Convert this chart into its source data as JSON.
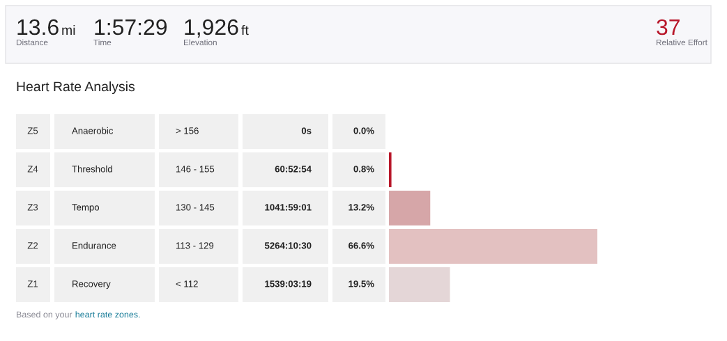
{
  "chart_data": {
    "type": "bar",
    "orientation": "horizontal",
    "title": "Heart Rate Analysis",
    "categories": [
      "Z5",
      "Z4",
      "Z3",
      "Z2",
      "Z1"
    ],
    "values": [
      0.0,
      0.8,
      13.2,
      66.6,
      19.5
    ],
    "colors": [
      "#e4d6d7",
      "#b8172a",
      "#d6a6a8",
      "#e3c1c1",
      "#e4d6d7"
    ],
    "value_labels": [
      "0.0%",
      "0.8%",
      "13.2%",
      "66.6%",
      "19.5%"
    ],
    "annotations": [
      "13.6",
      "mi",
      "Distance",
      "1:57:29",
      "Time",
      "1,926",
      "ft",
      "Elevation",
      "37",
      "Relative Effort",
      "Anaerobic",
      "> 156",
      "0s",
      "Threshold",
      "146 - 155",
      "60:52:54",
      "Tempo",
      "130 - 145",
      "1041:59:01",
      "Endurance",
      "113 - 129",
      "5264:10:30",
      "Recovery",
      "< 112",
      "1539:03:19",
      "Based on your",
      "heart rate zones."
    ]
  }
}
